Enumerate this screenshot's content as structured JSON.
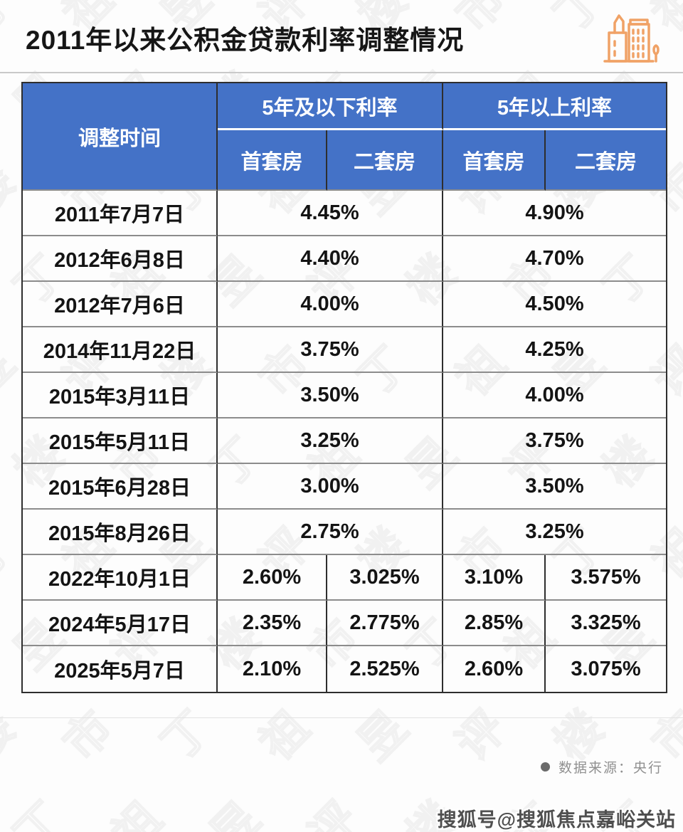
{
  "title": "2011年以来公积金贷款利率调整情况",
  "table": {
    "header": {
      "time": "调整时间",
      "group_below": "5年及以下利率",
      "group_above": "5年以上利率",
      "first_home": "首套房",
      "second_home": "二套房"
    },
    "merged_rows": [
      {
        "date": "2011年7月7日",
        "below": "4.45%",
        "above": "4.90%"
      },
      {
        "date": "2012年6月8日",
        "below": "4.40%",
        "above": "4.70%"
      },
      {
        "date": "2012年7月6日",
        "below": "4.00%",
        "above": "4.50%"
      },
      {
        "date": "2014年11月22日",
        "below": "3.75%",
        "above": "4.25%"
      },
      {
        "date": "2015年3月11日",
        "below": "3.50%",
        "above": "4.00%"
      },
      {
        "date": "2015年5月11日",
        "below": "3.25%",
        "above": "3.75%"
      },
      {
        "date": "2015年6月28日",
        "below": "3.00%",
        "above": "3.50%"
      },
      {
        "date": "2015年8月26日",
        "below": "2.75%",
        "above": "3.25%"
      }
    ],
    "split_rows": [
      {
        "date": "2022年10月1日",
        "below_first": "2.60%",
        "below_second": "3.025%",
        "above_first": "3.10%",
        "above_second": "3.575%"
      },
      {
        "date": "2024年5月17日",
        "below_first": "2.35%",
        "below_second": "2.775%",
        "above_first": "2.85%",
        "above_second": "3.325%"
      },
      {
        "date": "2025年5月7日",
        "below_first": "2.10%",
        "below_second": "2.525%",
        "above_first": "2.60%",
        "above_second": "3.075%"
      }
    ]
  },
  "footer": {
    "source": "数据来源：央行"
  },
  "watermarks": {
    "background_text": "丁祖昱评楼市",
    "sohu_badge": "搜狐号@搜狐焦点嘉峪关站"
  },
  "icons": {
    "title_icon": "buildings-icon"
  },
  "colors": {
    "header_blue": "#4472C7",
    "accent_orange": "#F0A266",
    "border_dark": "#2E2E2E",
    "border_gray": "#8C8C8C",
    "text_dark": "#141414",
    "text_gray": "#909090"
  },
  "chart_data": {
    "type": "table",
    "title": "2011年以来公积金贷款利率调整情况",
    "columns": [
      "调整时间",
      "5年及以下利率-首套房",
      "5年及以下利率-二套房",
      "5年以上利率-首套房",
      "5年以上利率-二套房"
    ],
    "rows": [
      [
        "2011年7月7日",
        "4.45%",
        "4.45%",
        "4.90%",
        "4.90%"
      ],
      [
        "2012年6月8日",
        "4.40%",
        "4.40%",
        "4.70%",
        "4.70%"
      ],
      [
        "2012年7月6日",
        "4.00%",
        "4.00%",
        "4.50%",
        "4.50%"
      ],
      [
        "2014年11月22日",
        "3.75%",
        "3.75%",
        "4.25%",
        "4.25%"
      ],
      [
        "2015年3月11日",
        "3.50%",
        "3.50%",
        "4.00%",
        "4.00%"
      ],
      [
        "2015年5月11日",
        "3.25%",
        "3.25%",
        "3.75%",
        "3.75%"
      ],
      [
        "2015年6月28日",
        "3.00%",
        "3.00%",
        "3.50%",
        "3.50%"
      ],
      [
        "2015年8月26日",
        "2.75%",
        "2.75%",
        "3.25%",
        "3.25%"
      ],
      [
        "2022年10月1日",
        "2.60%",
        "3.025%",
        "3.10%",
        "3.575%"
      ],
      [
        "2024年5月17日",
        "2.35%",
        "2.775%",
        "2.85%",
        "3.325%"
      ],
      [
        "2025年5月7日",
        "2.10%",
        "2.525%",
        "2.60%",
        "3.075%"
      ]
    ],
    "notes": "前8行首套房与二套房利率合并为同一值显示；数据来源：央行"
  }
}
